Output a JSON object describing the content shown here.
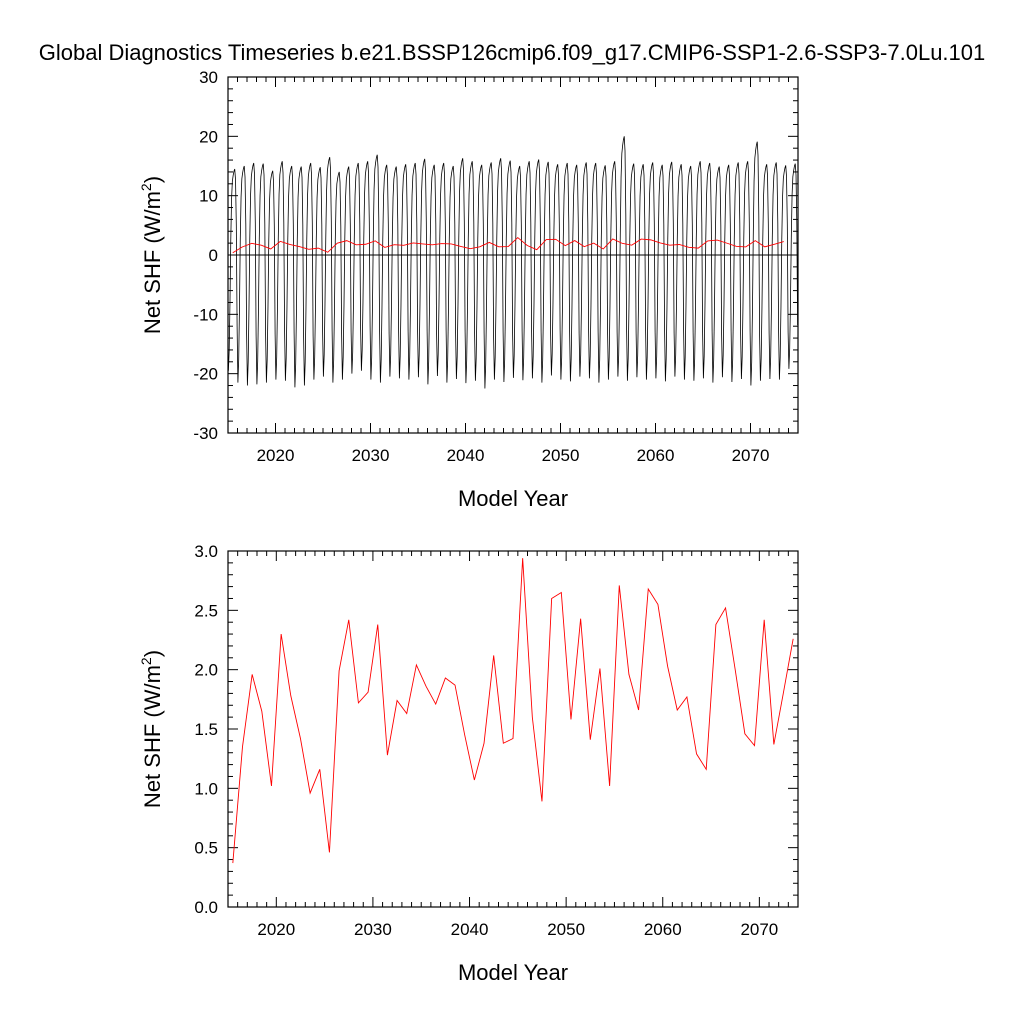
{
  "title": "Global Diagnostics Timeseries b.e21.BSSP126cmip6.f09_g17.CMIP6-SSP1-2.6-SSP3-7.0Lu.101",
  "colors": {
    "monthly": "#000000",
    "annual": "#ff0000",
    "zero_line": "#000000"
  },
  "chart_data": [
    {
      "type": "line",
      "xlabel": "Model Year",
      "ylabel": "Net SHF (W/m²)",
      "ylabel_parts": {
        "main": "Net SHF (W/m",
        "sup": "2",
        "close": ")"
      },
      "xlim": [
        2015,
        2075
      ],
      "ylim": [
        -30,
        30
      ],
      "x_ticks": [
        2020,
        2030,
        2040,
        2050,
        2060,
        2070
      ],
      "x_tick_labels": [
        "2020",
        "2030",
        "2040",
        "2050",
        "2060",
        "2070"
      ],
      "y_ticks": [
        -30,
        -20,
        -10,
        0,
        10,
        20,
        30
      ],
      "y_tick_labels": [
        "-30",
        "-20",
        "-10",
        "0",
        "10",
        "20",
        "30"
      ],
      "reference_line": 0,
      "series": [
        {
          "kind": "monthly",
          "start_year": 2015,
          "month_profile": [
            -19.5,
            -16.0,
            -8.0,
            2.5,
            9.5,
            12.5,
            13.5,
            14.2,
            14.6,
            12.8,
            5.0,
            -12.0
          ],
          "yearly_max": [
            14.5,
            15.0,
            15.5,
            15.4,
            14.2,
            15.8,
            15.0,
            14.9,
            15.5,
            14.8,
            16.5,
            14.0,
            14.9,
            15.5,
            15.8,
            16.9,
            15.2,
            14.9,
            15.3,
            15.5,
            16.2,
            15.2,
            15.5,
            15.0,
            16.3,
            15.8,
            15.2,
            15.6,
            16.3,
            15.9,
            15.0,
            15.8,
            16.1,
            15.7,
            15.3,
            15.5,
            15.2,
            15.6,
            15.5,
            15.1,
            15.8,
            20.0,
            15.4,
            15.3,
            15.6,
            15.2,
            15.7,
            15.3,
            15.0,
            15.8,
            15.5,
            14.9,
            15.2,
            15.6,
            15.8,
            19.1,
            15.3,
            15.6,
            15.1,
            15.4
          ],
          "yearly_min": [
            -19.5,
            -21.5,
            -22.0,
            -21.8,
            -21.5,
            -21.0,
            -21.2,
            -22.3,
            -22.0,
            -21.0,
            -20.5,
            -21.5,
            -21.0,
            -20.0,
            -19.5,
            -21.0,
            -21.5,
            -20.5,
            -20.8,
            -21.0,
            -20.6,
            -21.8,
            -20.4,
            -21.5,
            -20.9,
            -21.6,
            -21.2,
            -22.5,
            -21.0,
            -21.4,
            -20.7,
            -21.1,
            -20.8,
            -21.5,
            -20.3,
            -21.0,
            -21.3,
            -20.5,
            -20.8,
            -21.5,
            -21.0,
            -20.5,
            -21.2,
            -20.6,
            -21.0,
            -20.8,
            -21.3,
            -20.5,
            -21.0,
            -21.2,
            -20.8,
            -21.5,
            -20.6,
            -21.4,
            -20.9,
            -22.0,
            -21.2,
            -20.9,
            -21.0,
            -19.2
          ]
        },
        {
          "kind": "annual",
          "x": [
            2015.5,
            2016.5,
            2017.5,
            2018.5,
            2019.5,
            2020.5,
            2021.5,
            2022.5,
            2023.5,
            2024.5,
            2025.5,
            2026.5,
            2027.5,
            2028.5,
            2029.5,
            2030.5,
            2031.5,
            2032.5,
            2033.5,
            2034.5,
            2035.5,
            2036.5,
            2037.5,
            2038.5,
            2039.5,
            2040.5,
            2041.5,
            2042.5,
            2043.5,
            2044.5,
            2045.5,
            2046.5,
            2047.5,
            2048.5,
            2049.5,
            2050.5,
            2051.5,
            2052.5,
            2053.5,
            2054.5,
            2055.5,
            2056.5,
            2057.5,
            2058.5,
            2059.5,
            2060.5,
            2061.5,
            2062.5,
            2063.5,
            2064.5,
            2065.5,
            2066.5,
            2067.5,
            2068.5,
            2069.5,
            2070.5,
            2071.5,
            2072.5,
            2073.5
          ],
          "values": [
            0.37,
            1.35,
            1.96,
            1.65,
            1.02,
            2.3,
            1.78,
            1.42,
            0.96,
            1.16,
            0.46,
            1.99,
            2.42,
            1.72,
            1.81,
            2.38,
            1.28,
            1.74,
            1.63,
            2.04,
            1.86,
            1.71,
            1.93,
            1.87,
            1.45,
            1.07,
            1.38,
            2.12,
            1.38,
            1.42,
            2.94,
            1.6,
            0.89,
            2.6,
            2.65,
            1.58,
            2.43,
            1.41,
            2.01,
            1.02,
            2.71,
            1.96,
            1.66,
            2.68,
            2.55,
            2.03,
            1.66,
            1.77,
            1.29,
            1.16,
            2.38,
            2.52,
            2.0,
            1.46,
            1.36,
            2.42,
            1.37,
            1.81,
            2.26
          ]
        }
      ]
    },
    {
      "type": "line",
      "xlabel": "Model Year",
      "ylabel": "Net SHF (W/m²)",
      "ylabel_parts": {
        "main": "Net SHF (W/m",
        "sup": "2",
        "close": ")"
      },
      "xlim": [
        2015,
        2074
      ],
      "ylim": [
        0.0,
        3.0
      ],
      "x_ticks": [
        2020,
        2030,
        2040,
        2050,
        2060,
        2070
      ],
      "x_tick_labels": [
        "2020",
        "2030",
        "2040",
        "2050",
        "2060",
        "2070"
      ],
      "y_ticks": [
        0.0,
        0.5,
        1.0,
        1.5,
        2.0,
        2.5,
        3.0
      ],
      "y_tick_labels": [
        "0.0",
        "0.5",
        "1.0",
        "1.5",
        "2.0",
        "2.5",
        "3.0"
      ],
      "series": [
        {
          "kind": "annual",
          "x": [
            2015.5,
            2016.5,
            2017.5,
            2018.5,
            2019.5,
            2020.5,
            2021.5,
            2022.5,
            2023.5,
            2024.5,
            2025.5,
            2026.5,
            2027.5,
            2028.5,
            2029.5,
            2030.5,
            2031.5,
            2032.5,
            2033.5,
            2034.5,
            2035.5,
            2036.5,
            2037.5,
            2038.5,
            2039.5,
            2040.5,
            2041.5,
            2042.5,
            2043.5,
            2044.5,
            2045.5,
            2046.5,
            2047.5,
            2048.5,
            2049.5,
            2050.5,
            2051.5,
            2052.5,
            2053.5,
            2054.5,
            2055.5,
            2056.5,
            2057.5,
            2058.5,
            2059.5,
            2060.5,
            2061.5,
            2062.5,
            2063.5,
            2064.5,
            2065.5,
            2066.5,
            2067.5,
            2068.5,
            2069.5,
            2070.5,
            2071.5,
            2072.5,
            2073.5
          ],
          "values": [
            0.37,
            1.35,
            1.96,
            1.65,
            1.02,
            2.3,
            1.78,
            1.42,
            0.96,
            1.16,
            0.46,
            1.99,
            2.42,
            1.72,
            1.81,
            2.38,
            1.28,
            1.74,
            1.63,
            2.04,
            1.86,
            1.71,
            1.93,
            1.87,
            1.45,
            1.07,
            1.38,
            2.12,
            1.38,
            1.42,
            2.94,
            1.6,
            0.89,
            2.6,
            2.65,
            1.58,
            2.43,
            1.41,
            2.01,
            1.02,
            2.71,
            1.96,
            1.66,
            2.68,
            2.55,
            2.03,
            1.66,
            1.77,
            1.29,
            1.16,
            2.38,
            2.52,
            2.0,
            1.46,
            1.36,
            2.42,
            1.37,
            1.81,
            2.26
          ]
        }
      ]
    }
  ]
}
